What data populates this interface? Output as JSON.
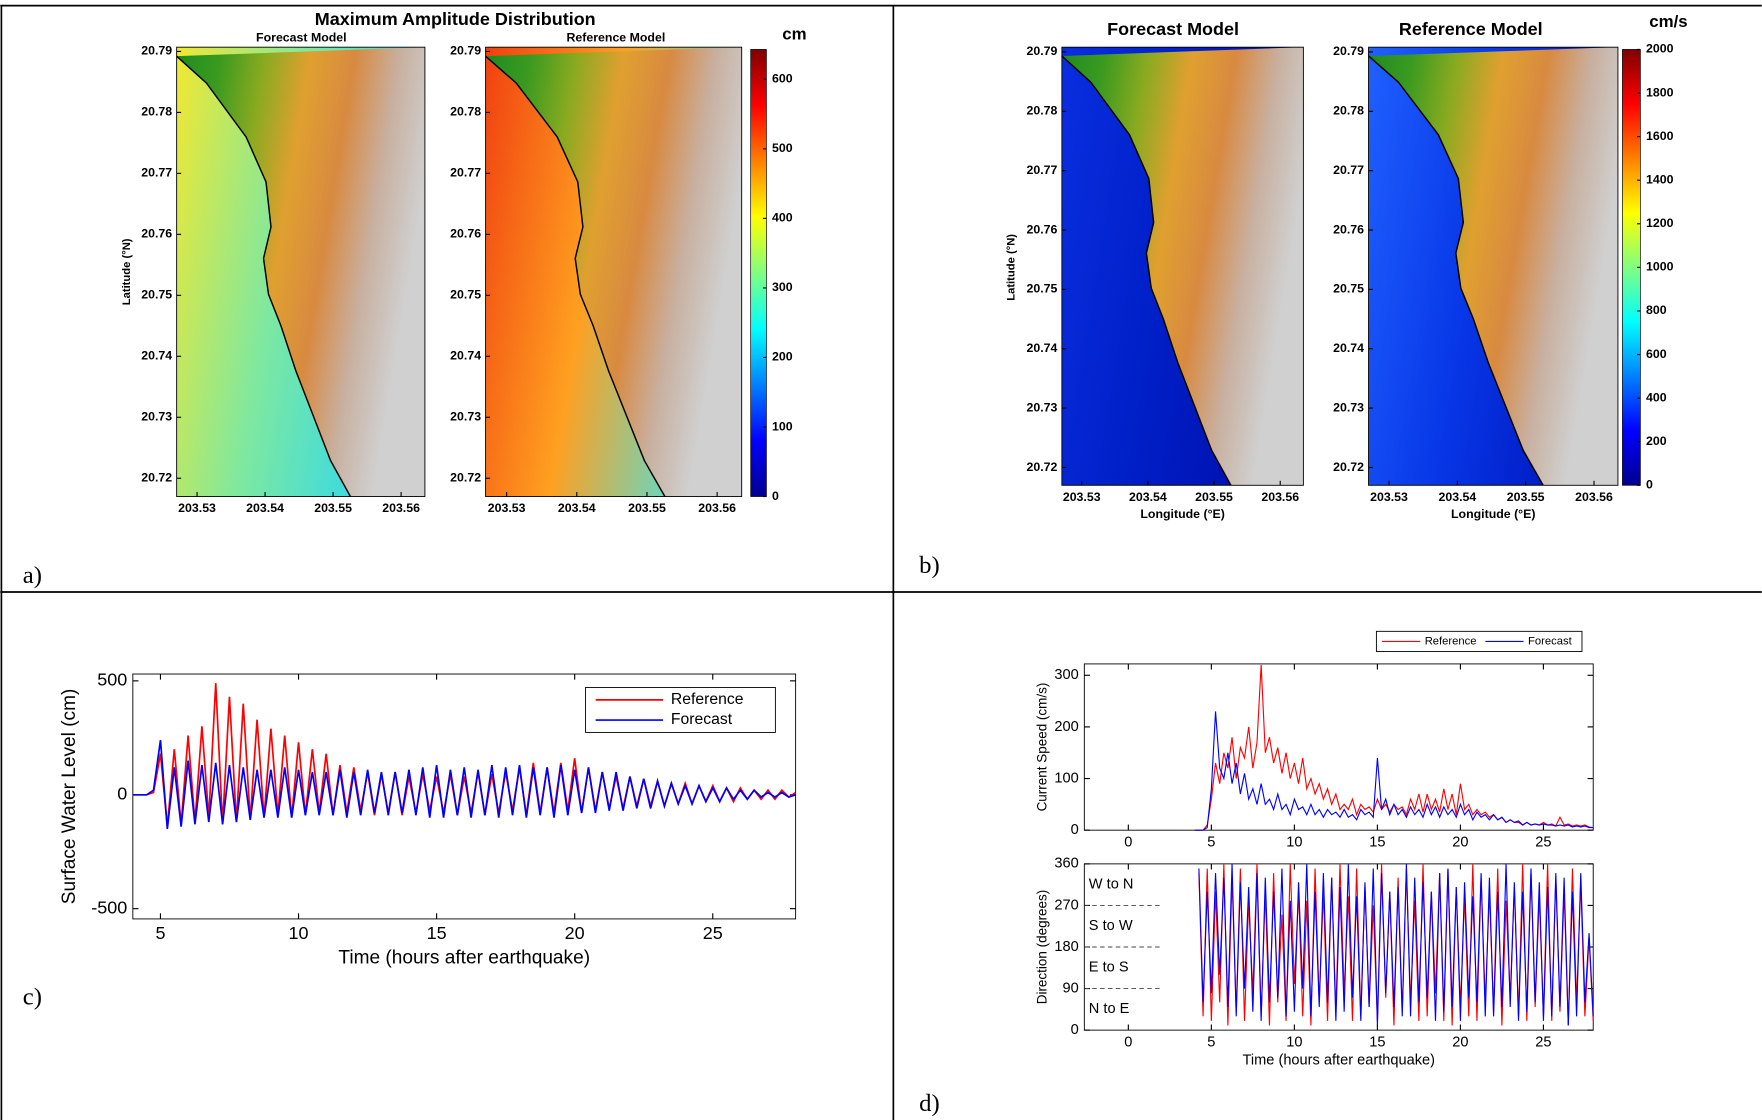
{
  "chart_data": [
    {
      "type": "map",
      "label": "a)",
      "title": "Maximum Amplitude Distribution",
      "ylabel": "Latitude (°N)",
      "panels": [
        {
          "title": "Forecast Model",
          "sea": [
            "#f2e830",
            "#7ee8a0",
            "#30d8ec"
          ]
        },
        {
          "title": "Reference Model",
          "sea": [
            "#f04010",
            "#ffa020",
            "#50e0d8"
          ]
        }
      ],
      "xlim": [
        203.527,
        203.5635
      ],
      "xticks": [
        203.53,
        203.54,
        203.55,
        203.56
      ],
      "ylim": [
        20.717,
        20.7907
      ],
      "yticks": [
        20.72,
        20.73,
        20.74,
        20.75,
        20.76,
        20.77,
        20.78,
        20.79
      ],
      "colorbar": {
        "label": "cm",
        "lim": [
          0,
          643
        ],
        "ticks": [
          0,
          100,
          200,
          300,
          400,
          500,
          600
        ]
      }
    },
    {
      "type": "map",
      "label": "b)",
      "ylabel": "Latitude (°N)",
      "xlabel": "Longitude (°E)",
      "panels": [
        {
          "title": "Forecast Model",
          "sea": [
            "#0a2ee0",
            "#0020c8",
            "#0010b0"
          ]
        },
        {
          "title": "Reference Model",
          "sea": [
            "#2060ff",
            "#0838e8",
            "#0018c0"
          ]
        }
      ],
      "xlim": [
        203.527,
        203.5635
      ],
      "xticks": [
        203.53,
        203.54,
        203.55,
        203.56
      ],
      "ylim": [
        20.717,
        20.7908
      ],
      "yticks": [
        20.72,
        20.73,
        20.74,
        20.75,
        20.76,
        20.77,
        20.78,
        20.79
      ],
      "colorbar": {
        "label": "cm/s",
        "lim": [
          0,
          2000
        ],
        "ticks": [
          0,
          200,
          400,
          600,
          800,
          1000,
          1200,
          1400,
          1600,
          1800,
          2000
        ]
      }
    },
    {
      "type": "line",
      "label": "c)",
      "xlabel": "Time (hours after earthquake)",
      "ylabel": "Surface Water Level (cm)",
      "xlim": [
        4,
        28
      ],
      "xticks": [
        5,
        10,
        15,
        20,
        25
      ],
      "ylim": [
        -545,
        530
      ],
      "yticks": [
        -500,
        0,
        500
      ],
      "legend": "upper right",
      "x": [
        4,
        4.25,
        4.5,
        4.75,
        5,
        5.25,
        5.5,
        5.75,
        6,
        6.25,
        6.5,
        6.75,
        7,
        7.25,
        7.5,
        7.75,
        8,
        8.25,
        8.5,
        8.75,
        9,
        9.25,
        9.5,
        9.75,
        10,
        10.25,
        10.5,
        10.75,
        11,
        11.25,
        11.5,
        11.75,
        12,
        12.25,
        12.5,
        12.75,
        13,
        13.25,
        13.5,
        13.75,
        14,
        14.25,
        14.5,
        14.75,
        15,
        15.25,
        15.5,
        15.75,
        16,
        16.25,
        16.5,
        16.75,
        17,
        17.25,
        17.5,
        17.75,
        18,
        18.25,
        18.5,
        18.75,
        19,
        19.25,
        19.5,
        19.75,
        20,
        20.25,
        20.5,
        20.75,
        21,
        21.25,
        21.5,
        21.75,
        22,
        22.25,
        22.5,
        22.75,
        23,
        23.25,
        23.5,
        23.75,
        24,
        24.25,
        24.5,
        24.75,
        25,
        25.25,
        25.5,
        25.75,
        26,
        26.25,
        26.5,
        26.75,
        27,
        27.25,
        27.5,
        27.75,
        28
      ],
      "series": [
        {
          "name": "Reference",
          "color": "#ff0000",
          "values": [
            0,
            0,
            0,
            10,
            180,
            -140,
            200,
            -130,
            260,
            -120,
            300,
            -100,
            490,
            -130,
            430,
            -120,
            400,
            -110,
            330,
            -100,
            290,
            -90,
            260,
            -100,
            230,
            -90,
            200,
            -80,
            180,
            -90,
            130,
            -80,
            120,
            -70,
            100,
            -90,
            90,
            -80,
            100,
            -90,
            80,
            -80,
            90,
            -70,
            80,
            -80,
            90,
            -90,
            80,
            -80,
            100,
            -90,
            90,
            -80,
            100,
            -70,
            120,
            -90,
            140,
            -80,
            120,
            -80,
            140,
            -70,
            160,
            -80,
            120,
            -70,
            100,
            -60,
            80,
            -60,
            80,
            -50,
            70,
            -50,
            60,
            -50,
            50,
            -40,
            50,
            -40,
            40,
            -30,
            40,
            -30,
            30,
            -30,
            30,
            -20,
            20,
            -20,
            20,
            -20,
            20,
            -10,
            10
          ]
        },
        {
          "name": "Forecast",
          "color": "#0000ff",
          "values": [
            0,
            0,
            0,
            20,
            240,
            -150,
            120,
            -140,
            150,
            -130,
            130,
            -120,
            140,
            -130,
            130,
            -120,
            120,
            -110,
            110,
            -100,
            110,
            -100,
            120,
            -100,
            110,
            -90,
            100,
            -90,
            100,
            -90,
            110,
            -100,
            100,
            -90,
            110,
            -80,
            100,
            -90,
            100,
            -80,
            110,
            -90,
            120,
            -100,
            130,
            -100,
            110,
            -90,
            120,
            -100,
            110,
            -90,
            130,
            -100,
            120,
            -90,
            130,
            -100,
            120,
            -90,
            120,
            -100,
            130,
            -90,
            110,
            -80,
            120,
            -80,
            100,
            -70,
            100,
            -70,
            80,
            -60,
            70,
            -60,
            60,
            -50,
            50,
            -40,
            40,
            -40,
            40,
            -30,
            30,
            -30,
            30,
            -20,
            20,
            -20,
            20,
            -10,
            10,
            -10,
            10,
            -10,
            0
          ]
        }
      ]
    },
    {
      "type": "speed-direction",
      "label": "d)",
      "xlabel": "Time (hours after earthquake)",
      "xlim": [
        -2.65,
        28
      ],
      "xticks": [
        0,
        5,
        10,
        15,
        20,
        25
      ],
      "speed_axis": {
        "ylabel": "Current Speed (cm/s)",
        "ylim": [
          0,
          322
        ],
        "yticks": [
          0,
          100,
          200,
          300
        ]
      },
      "direction_axis": {
        "ylabel": "Direction (degrees)",
        "ylim": [
          0,
          360
        ],
        "yticks": [
          0,
          90,
          180,
          270,
          360
        ],
        "sectors": [
          "W to N",
          "S to W",
          "E to S",
          "N to E"
        ]
      },
      "x": [
        4,
        4.25,
        4.5,
        4.75,
        5,
        5.25,
        5.5,
        5.75,
        6,
        6.25,
        6.5,
        6.75,
        7,
        7.25,
        7.5,
        7.75,
        8,
        8.25,
        8.5,
        8.75,
        9,
        9.25,
        9.5,
        9.75,
        10,
        10.25,
        10.5,
        10.75,
        11,
        11.25,
        11.5,
        11.75,
        12,
        12.25,
        12.5,
        12.75,
        13,
        13.25,
        13.5,
        13.75,
        14,
        14.25,
        14.5,
        14.75,
        15,
        15.25,
        15.5,
        15.75,
        16,
        16.25,
        16.5,
        16.75,
        17,
        17.25,
        17.5,
        17.75,
        18,
        18.25,
        18.5,
        18.75,
        19,
        19.25,
        19.5,
        19.75,
        20,
        20.25,
        20.5,
        20.75,
        21,
        21.25,
        21.5,
        21.75,
        22,
        22.25,
        22.5,
        22.75,
        23,
        23.25,
        23.5,
        23.75,
        24,
        24.25,
        24.5,
        24.75,
        25,
        25.25,
        25.5,
        25.75,
        26,
        26.25,
        26.5,
        26.75,
        27,
        27.25,
        27.5,
        27.75,
        28
      ],
      "series": [
        {
          "name": "Reference",
          "color": "#ff0000",
          "values": [
            0,
            0,
            0,
            10,
            60,
            130,
            90,
            150,
            120,
            180,
            100,
            160,
            140,
            200,
            120,
            170,
            320,
            150,
            180,
            130,
            160,
            110,
            150,
            100,
            130,
            90,
            140,
            80,
            100,
            70,
            90,
            60,
            80,
            50,
            70,
            40,
            50,
            40,
            60,
            30,
            50,
            40,
            45,
            35,
            60,
            40,
            50,
            35,
            50,
            40,
            45,
            30,
            60,
            40,
            70,
            35,
            70,
            40,
            60,
            35,
            80,
            40,
            70,
            30,
            90,
            40,
            50,
            30,
            40,
            30,
            35,
            25,
            30,
            20,
            25,
            15,
            20,
            15,
            15,
            10,
            15,
            10,
            12,
            10,
            15,
            10,
            12,
            8,
            25,
            10,
            12,
            8,
            10,
            8,
            10,
            6,
            5
          ],
          "direction": [
            null,
            340,
            30,
            350,
            20,
            300,
            60,
            360,
            10,
            330,
            40,
            350,
            20,
            280,
            80,
            360,
            30,
            300,
            10,
            340,
            60,
            250,
            20,
            360,
            100,
            300,
            30,
            280,
            10,
            350,
            60,
            300,
            20,
            330,
            40,
            360,
            80,
            290,
            20,
            350,
            30,
            310,
            50,
            270,
            20,
            360,
            70,
            300,
            10,
            330,
            40,
            350,
            60,
            280,
            20,
            360,
            30,
            300,
            80,
            340,
            20,
            350,
            10,
            310,
            50,
            290,
            30,
            360,
            20,
            330,
            60,
            300,
            40,
            350,
            10,
            280,
            70,
            310,
            30,
            360,
            20,
            340,
            50,
            290,
            30,
            360,
            20,
            330,
            40,
            300,
            10,
            350,
            60,
            320,
            30,
            200,
            20
          ]
        },
        {
          "name": "Forecast",
          "color": "#0000ff",
          "values": [
            0,
            0,
            0,
            5,
            80,
            230,
            120,
            100,
            150,
            90,
            130,
            70,
            110,
            60,
            80,
            50,
            90,
            50,
            60,
            40,
            70,
            40,
            50,
            30,
            60,
            40,
            45,
            30,
            50,
            30,
            40,
            25,
            40,
            30,
            35,
            25,
            40,
            25,
            30,
            20,
            40,
            30,
            35,
            25,
            140,
            40,
            60,
            30,
            50,
            30,
            40,
            25,
            45,
            30,
            40,
            25,
            50,
            30,
            45,
            25,
            45,
            30,
            40,
            25,
            50,
            30,
            40,
            20,
            35,
            25,
            30,
            20,
            30,
            20,
            25,
            15,
            20,
            15,
            18,
            10,
            15,
            10,
            12,
            10,
            12,
            10,
            10,
            8,
            10,
            8,
            10,
            6,
            8,
            6,
            8,
            5,
            5
          ],
          "direction": [
            null,
            350,
            60,
            300,
            80,
            340,
            120,
            330,
            50,
            360,
            30,
            320,
            90,
            310,
            40,
            340,
            20,
            330,
            60,
            300,
            70,
            350,
            30,
            280,
            40,
            320,
            90,
            360,
            30,
            300,
            50,
            340,
            60,
            330,
            20,
            310,
            40,
            360,
            70,
            290,
            20,
            320,
            50,
            350,
            10,
            340,
            80,
            300,
            50,
            310,
            30,
            360,
            30,
            330,
            60,
            320,
            70,
            300,
            20,
            340,
            40,
            350,
            50,
            310,
            20,
            320,
            70,
            290,
            60,
            340,
            30,
            330,
            30,
            300,
            50,
            360,
            50,
            320,
            20,
            300,
            40,
            350,
            60,
            320,
            20,
            310,
            30,
            340,
            50,
            330,
            10,
            300,
            30,
            340,
            60,
            210,
            30
          ]
        }
      ]
    }
  ]
}
